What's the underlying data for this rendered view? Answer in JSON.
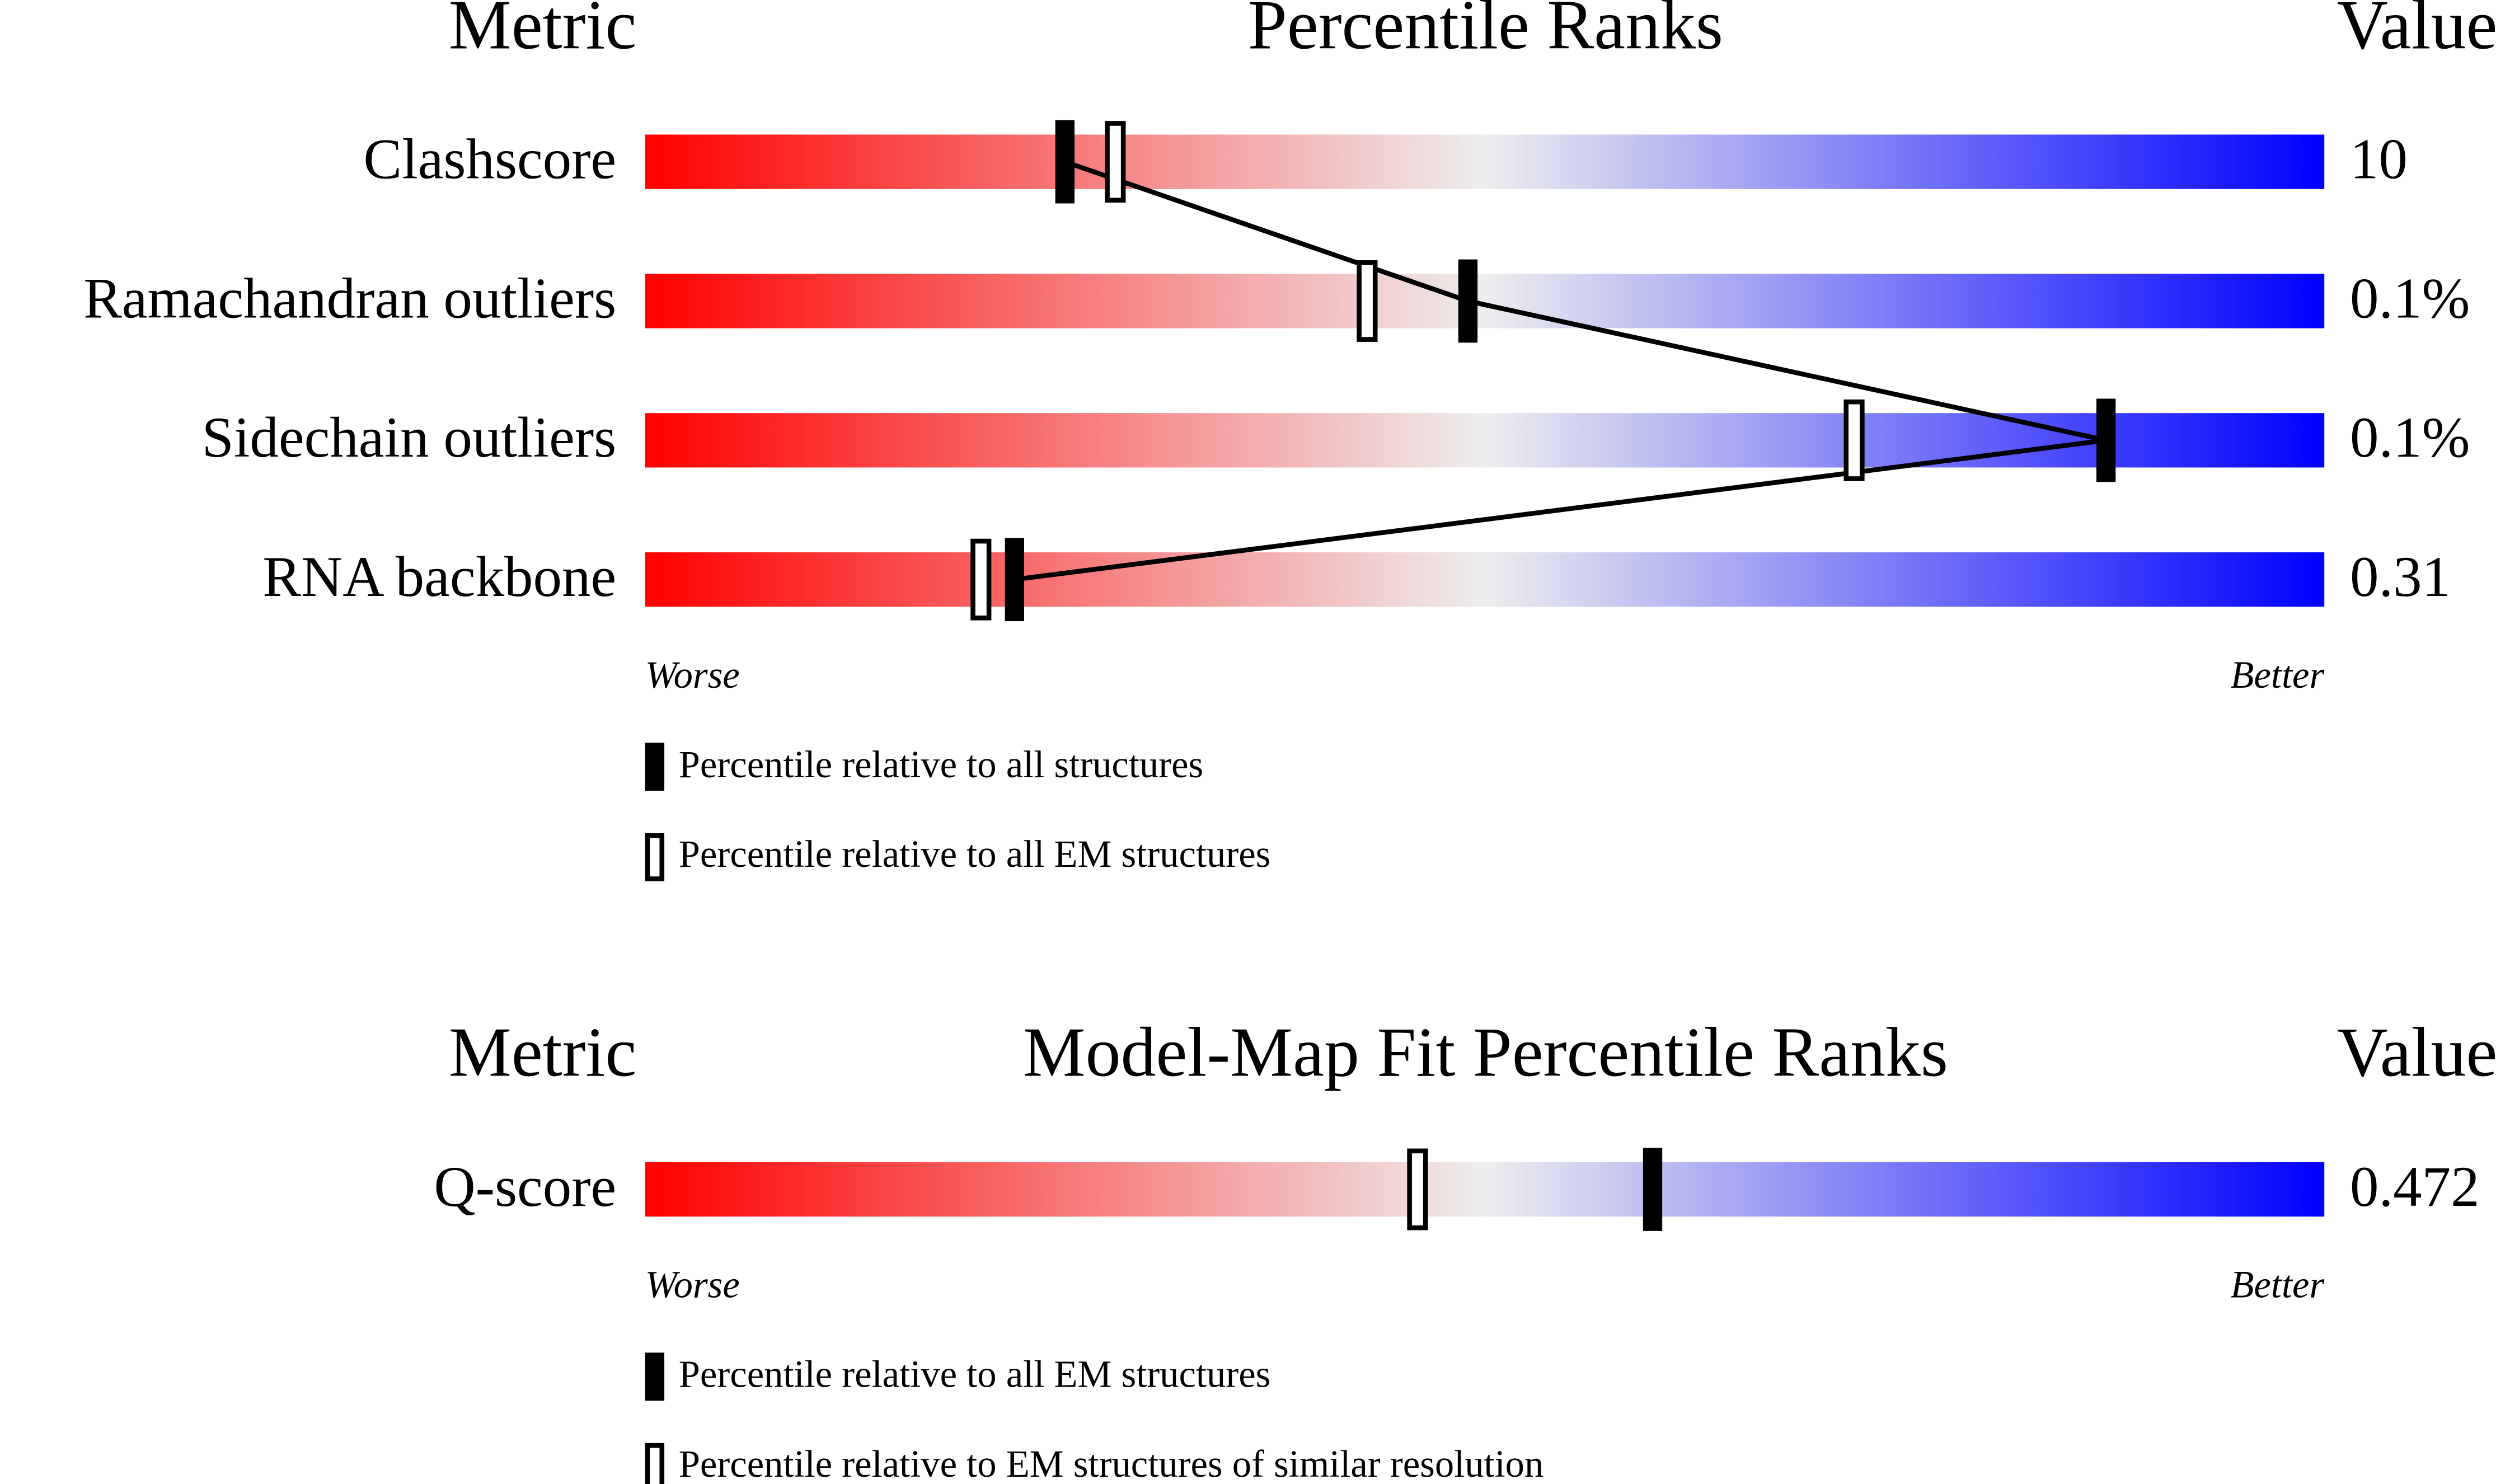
{
  "chart_data": [
    {
      "type": "percentile",
      "title": "Percentile Ranks",
      "metric_header": "Metric",
      "value_header": "Value",
      "categories": [
        "Clashscore",
        "Ramachandran outliers",
        "Sidechain outliers",
        "RNA backbone"
      ],
      "metric_values": [
        "10",
        "0.1%",
        "0.1%",
        "0.31"
      ],
      "series": [
        {
          "name": "Percentile relative to all structures",
          "style": "filled",
          "color": "#000000",
          "connected": true,
          "values": [
            25,
            49,
            87,
            22
          ]
        },
        {
          "name": "Percentile relative to all EM structures",
          "style": "hollow",
          "color": "#000000",
          "connected": false,
          "values": [
            28,
            43,
            72,
            20
          ]
        }
      ],
      "xlim": [
        0,
        100
      ],
      "low_label": "Worse",
      "high_label": "Better",
      "gradient": [
        "#ff0000",
        "#eeeeee",
        "#0000ff"
      ]
    },
    {
      "type": "percentile",
      "title": "Model-Map Fit Percentile Ranks",
      "metric_header": "Metric",
      "value_header": "Value",
      "categories": [
        "Q-score"
      ],
      "metric_values": [
        "0.472"
      ],
      "series": [
        {
          "name": "Percentile relative to all EM structures",
          "style": "filled",
          "color": "#000000",
          "connected": true,
          "values": [
            60
          ]
        },
        {
          "name": "Percentile relative to EM structures of similar resolution",
          "style": "hollow",
          "color": "#000000",
          "connected": false,
          "values": [
            46
          ]
        }
      ],
      "xlim": [
        0,
        100
      ],
      "low_label": "Worse",
      "high_label": "Better",
      "gradient": [
        "#ff0000",
        "#eeeeee",
        "#0000ff"
      ]
    }
  ]
}
